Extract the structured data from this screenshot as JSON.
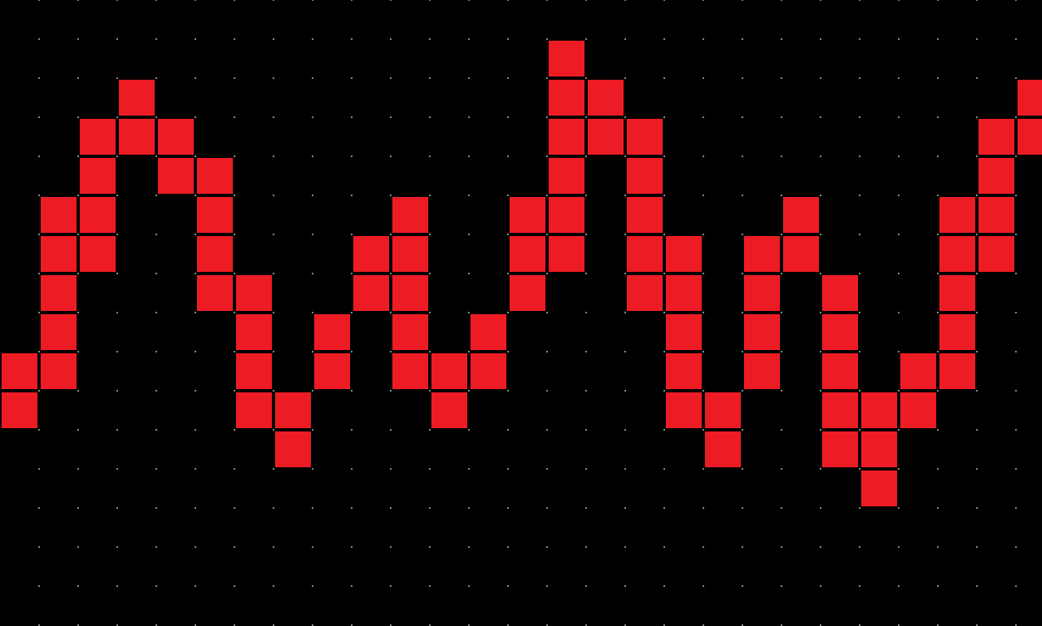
{
  "colors": {
    "background": "#000000",
    "cell_fill": "#ed1c24",
    "grid_dot": "#8a8a8a"
  },
  "columns": [
    {
      "col": 0,
      "rows": [
        9,
        10
      ]
    },
    {
      "col": 1,
      "rows": [
        5,
        6,
        7,
        8,
        9
      ]
    },
    {
      "col": 2,
      "rows": [
        3,
        4,
        5,
        6
      ]
    },
    {
      "col": 3,
      "rows": [
        2,
        3
      ]
    },
    {
      "col": 4,
      "rows": [
        3,
        4
      ]
    },
    {
      "col": 5,
      "rows": [
        4,
        5,
        6,
        7
      ]
    },
    {
      "col": 6,
      "rows": [
        7,
        8,
        9,
        10
      ]
    },
    {
      "col": 7,
      "rows": [
        10,
        11
      ]
    },
    {
      "col": 8,
      "rows": [
        8,
        9
      ]
    },
    {
      "col": 9,
      "rows": [
        6,
        7
      ]
    },
    {
      "col": 10,
      "rows": [
        5,
        6,
        7,
        8,
        9
      ]
    },
    {
      "col": 11,
      "rows": [
        9,
        10
      ]
    },
    {
      "col": 12,
      "rows": [
        8,
        9
      ]
    },
    {
      "col": 13,
      "rows": [
        5,
        6,
        7
      ]
    },
    {
      "col": 14,
      "rows": [
        1,
        2,
        3,
        4,
        5,
        6
      ]
    },
    {
      "col": 15,
      "rows": [
        2,
        3
      ]
    },
    {
      "col": 16,
      "rows": [
        3,
        4,
        5,
        6,
        7
      ]
    },
    {
      "col": 17,
      "rows": [
        6,
        7,
        8,
        9,
        10
      ]
    },
    {
      "col": 18,
      "rows": [
        10,
        11
      ]
    },
    {
      "col": 19,
      "rows": [
        6,
        7,
        8,
        9
      ]
    },
    {
      "col": 20,
      "rows": [
        5,
        6
      ]
    },
    {
      "col": 21,
      "rows": [
        7,
        8,
        9,
        10,
        11
      ]
    },
    {
      "col": 22,
      "rows": [
        10,
        11,
        12
      ]
    },
    {
      "col": 23,
      "rows": [
        9,
        10
      ]
    },
    {
      "col": 24,
      "rows": [
        5,
        6,
        7,
        8,
        9
      ]
    },
    {
      "col": 25,
      "rows": [
        3,
        4,
        5,
        6
      ]
    },
    {
      "col": 26,
      "rows": [
        2,
        3
      ]
    }
  ]
}
